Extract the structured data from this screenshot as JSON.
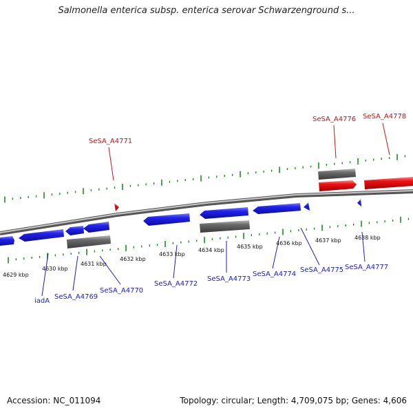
{
  "title": "Salmonella enterica subsp. enterica serovar Schwarzenground s...",
  "footer": {
    "accession": "Accession: NC_011094",
    "topology": "Topology: circular; Length: 4,709,075 bp; Genes: 4,606"
  },
  "colors": {
    "forward_gene": "#ee1111",
    "reverse_gene": "#1515dd",
    "rna_gene": "#6a6a6a",
    "ticks": "#1f8a1f",
    "backbone": "#8a8a8a"
  },
  "chart_data": {
    "type": "genome-map",
    "unit": "kbp",
    "ticks": [
      "4629 kbp",
      "4630 kbp",
      "4631 kbp",
      "4632 kbp",
      "4633 kbp",
      "4634 kbp",
      "4635 kbp",
      "4636 kbp",
      "4637 kbp",
      "4638 kbp"
    ],
    "forward_labels": [
      "SeSA_A4771",
      "SeSA_A4776",
      "SeSA_A4778"
    ],
    "reverse_labels": [
      "iadA",
      "SeSA_A4769",
      "SeSA_A4770",
      "SeSA_A4772",
      "SeSA_A4773",
      "SeSA_A4774",
      "SeSA_A4775",
      "SeSA_A4777"
    ]
  }
}
